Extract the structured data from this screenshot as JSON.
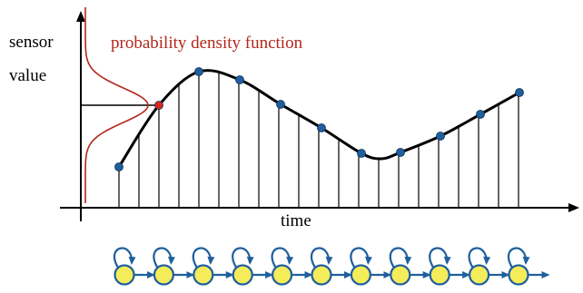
{
  "labels": {
    "y_axis_line1": "sensor",
    "y_axis_line2": "value",
    "pdf": "probability density function",
    "x_axis": "time"
  },
  "colors": {
    "axis": "#000000",
    "pdf_curve": "#b3271b",
    "pdf_label": "#b3271b",
    "sample_point": "#1f5f9e",
    "highlighted_sample": "#d9261c",
    "state_fill": "#f5ec5a",
    "state_border": "#1f5f9e",
    "transition_arrow": "#1f5f9e"
  },
  "samples": {
    "count": 11,
    "highlighted_index": 1
  },
  "state_chain": {
    "count": 11,
    "self_loops": true,
    "forward_transitions": true
  }
}
